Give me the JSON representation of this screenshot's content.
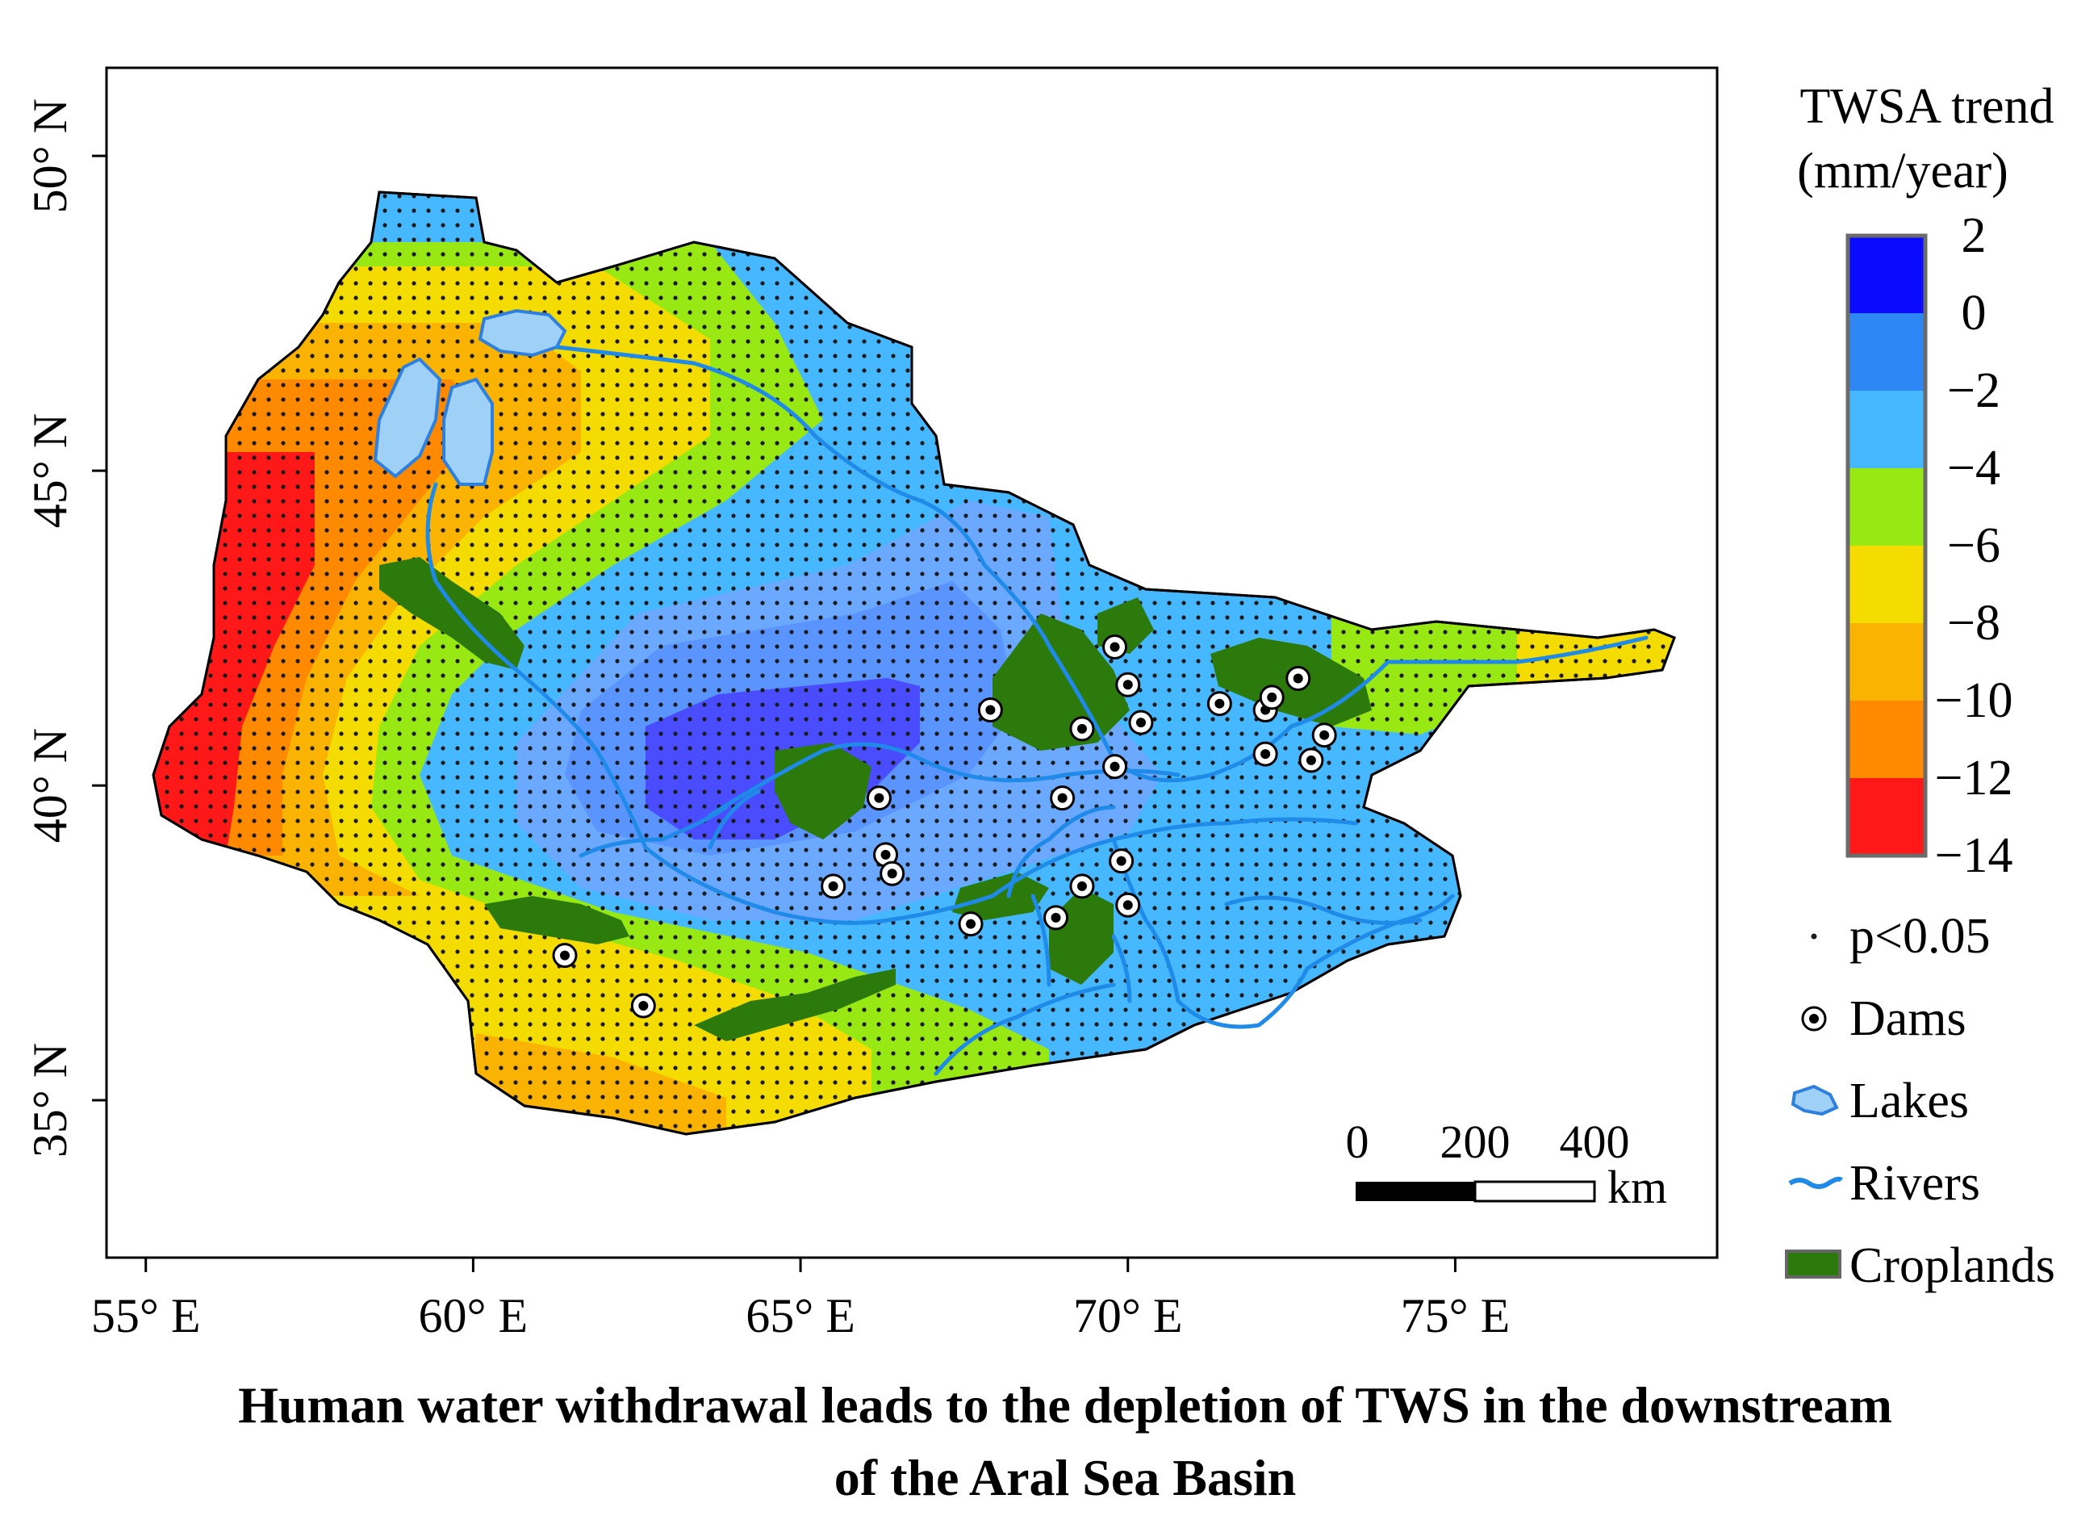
{
  "map": {
    "axes": {
      "x_ticks": [
        {
          "value": 55,
          "label": "55° E"
        },
        {
          "value": 60,
          "label": "60° E"
        },
        {
          "value": 65,
          "label": "65° E"
        },
        {
          "value": 70,
          "label": "70° E"
        },
        {
          "value": 75,
          "label": "75° E"
        }
      ],
      "y_ticks": [
        {
          "value": 50,
          "label": "50° N"
        },
        {
          "value": 45,
          "label": "45° N"
        },
        {
          "value": 40,
          "label": "40° N"
        },
        {
          "value": 35,
          "label": "35° N"
        }
      ],
      "lon_range": [
        54.4,
        79.0
      ],
      "lat_range": [
        32.5,
        51.4
      ]
    },
    "legend": {
      "title_line1": "TWSA trend",
      "title_line2": "(mm/year)",
      "colorbar": {
        "boundaries": [
          "2",
          "0",
          "−2",
          "−4",
          "−6",
          "−8",
          "−10",
          "−12",
          "−14"
        ],
        "colors": [
          "#0a0aff",
          "#2d87f5",
          "#46b8ff",
          "#98e814",
          "#f5dc00",
          "#f9b300",
          "#ff8a00",
          "#ff1818"
        ]
      },
      "items": [
        {
          "label": "p<0.05",
          "symbol": "dot"
        },
        {
          "label": "Dams",
          "symbol": "dam"
        },
        {
          "label": "Lakes",
          "symbol": "lake"
        },
        {
          "label": "Rivers",
          "symbol": "river"
        },
        {
          "label": "Croplands",
          "symbol": "cropland"
        }
      ]
    },
    "scale_bar": {
      "labels": [
        "0",
        "200",
        "400"
      ],
      "unit": "km"
    },
    "dams": [
      {
        "lon": 61.4,
        "lat": 37.3
      },
      {
        "lon": 62.6,
        "lat": 36.5
      },
      {
        "lon": 65.5,
        "lat": 38.4
      },
      {
        "lon": 66.2,
        "lat": 39.8
      },
      {
        "lon": 66.3,
        "lat": 38.9
      },
      {
        "lon": 66.4,
        "lat": 38.6
      },
      {
        "lon": 67.6,
        "lat": 37.8
      },
      {
        "lon": 67.9,
        "lat": 41.2
      },
      {
        "lon": 69.0,
        "lat": 39.8
      },
      {
        "lon": 68.9,
        "lat": 37.9
      },
      {
        "lon": 69.3,
        "lat": 40.9
      },
      {
        "lon": 69.3,
        "lat": 38.4
      },
      {
        "lon": 69.8,
        "lat": 42.2
      },
      {
        "lon": 69.8,
        "lat": 40.3
      },
      {
        "lon": 69.9,
        "lat": 38.8
      },
      {
        "lon": 70.0,
        "lat": 41.6
      },
      {
        "lon": 70.0,
        "lat": 38.1
      },
      {
        "lon": 70.2,
        "lat": 41.0
      },
      {
        "lon": 71.4,
        "lat": 41.3
      },
      {
        "lon": 72.1,
        "lat": 41.2
      },
      {
        "lon": 72.2,
        "lat": 41.4
      },
      {
        "lon": 72.1,
        "lat": 40.5
      },
      {
        "lon": 72.6,
        "lat": 41.7
      },
      {
        "lon": 72.8,
        "lat": 40.4
      },
      {
        "lon": 73.0,
        "lat": 40.8
      }
    ],
    "caption_line1": "Human water withdrawal leads to the depletion of TWS in the downstream",
    "caption_line2": "of the Aral Sea Basin"
  }
}
